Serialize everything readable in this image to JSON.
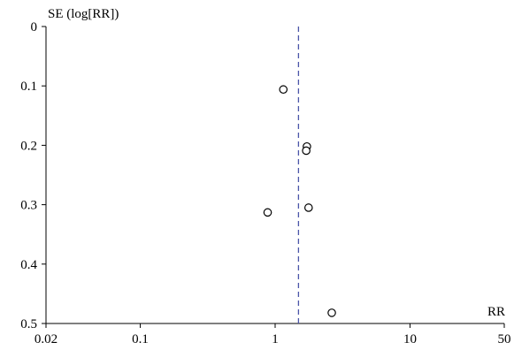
{
  "chart_data": {
    "type": "scatter",
    "title": "",
    "xlabel": "RR",
    "ylabel": "SE (log[RR])",
    "x_scale": "log",
    "xlim": [
      0.02,
      50
    ],
    "ylim": [
      0,
      0.5
    ],
    "y_inverted": true,
    "x_ticks": [
      0.02,
      0.1,
      1,
      10,
      50
    ],
    "x_tick_labels": [
      "0.02",
      "0.1",
      "1",
      "10",
      "50"
    ],
    "y_ticks": [
      0,
      0.1,
      0.2,
      0.3,
      0.4,
      0.5
    ],
    "y_tick_labels": [
      "0",
      "0.1",
      "0.2",
      "0.3",
      "0.4",
      "0.5"
    ],
    "grid": false,
    "pooled_effect": 1.49,
    "pooled_line_color": "#4a55a8",
    "marker": "open-circle",
    "points": [
      {
        "x": 1.15,
        "y": 0.106
      },
      {
        "x": 1.72,
        "y": 0.202
      },
      {
        "x": 1.7,
        "y": 0.209
      },
      {
        "x": 1.77,
        "y": 0.305
      },
      {
        "x": 0.88,
        "y": 0.313
      },
      {
        "x": 2.63,
        "y": 0.482
      }
    ]
  }
}
